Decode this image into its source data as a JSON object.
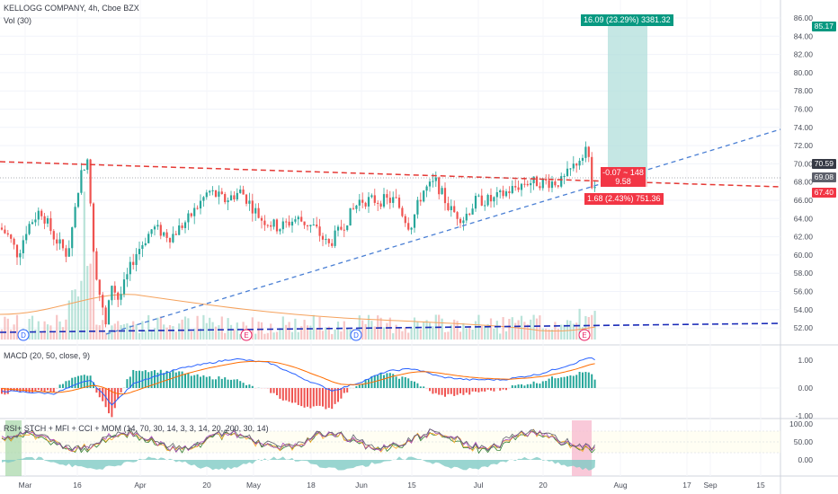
{
  "header": {
    "symbol": "KELLOGG COMPANY, 4h, Cboe BZX",
    "volume": "Vol (30)"
  },
  "panes": {
    "macd": "MACD (20, 50, close, 9)",
    "multi": "RSI+ STCH + MFI + CCI + MOM (14, 70, 30, 14, 3, 3, 14, 20, 200, 30, 14)"
  },
  "price_axis": [
    "86.00",
    "84.00",
    "82.00",
    "80.00",
    "78.00",
    "76.00",
    "74.00",
    "72.00",
    "70.00",
    "68.00",
    "66.00",
    "64.00",
    "62.00",
    "60.00",
    "58.00",
    "56.00",
    "54.00",
    "52.00"
  ],
  "price_tags": [
    {
      "value": "85.17",
      "color": "#089981"
    },
    {
      "value": "70.59",
      "color": "#363a45"
    },
    {
      "value": "69.08",
      "color": "#5d606b"
    },
    {
      "value": "67.40",
      "color": "#f23645"
    }
  ],
  "macd_axis": [
    "1.00",
    "0.00",
    "-1.00"
  ],
  "multi_axis": [
    "100.00",
    "50.00",
    "0.00"
  ],
  "time_axis": [
    "Mar",
    "16",
    "Apr",
    "20",
    "May",
    "18",
    "Jun",
    "15",
    "Jul",
    "20",
    "Aug",
    "17",
    "Sep",
    "15"
  ],
  "events": [
    "D",
    "E",
    "D",
    "E"
  ],
  "position": {
    "target": "16.09 (23.29%) 3381.32",
    "stop": "1.68 (2.43%) 751.36",
    "entry_line1": "-0.07 ~ 148",
    "entry_line2": "9.58"
  },
  "colors": {
    "up": "#26a69a",
    "down": "#ef5350",
    "target_zone": "#b2dfdb",
    "resistance": "#e53935",
    "support": "#4a7fd4",
    "base": "#1a2bb8"
  }
}
